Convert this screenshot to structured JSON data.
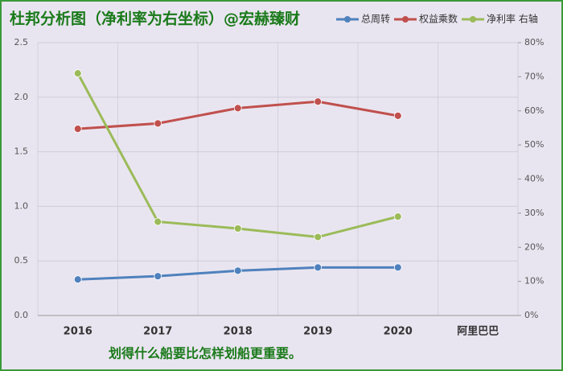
{
  "chart_data": {
    "type": "line",
    "title": "杜邦分析图（净利率为右坐标）@宏赫臻财",
    "annotation": "划得什么船要比怎样划船更重要。",
    "categories": [
      "2016",
      "2017",
      "2018",
      "2019",
      "2020",
      "阿里巴巴"
    ],
    "series": [
      {
        "name": "总周转",
        "color": "#4f81bd",
        "values": [
          0.33,
          0.36,
          0.41,
          0.44,
          0.44,
          null
        ]
      },
      {
        "name": "权益乘数",
        "color": "#c0504d",
        "values": [
          1.71,
          1.76,
          1.9,
          1.96,
          1.83,
          null
        ]
      },
      {
        "name": "净利率 右轴",
        "color": "#9bbb59",
        "axis": "y2",
        "values": [
          71,
          27.5,
          25.5,
          23,
          29,
          null
        ]
      }
    ],
    "ylim": [
      0,
      2.5
    ],
    "yticks": [
      {
        "value": 0,
        "label": "0.0"
      },
      0.5,
      {
        "value": 1,
        "label": "1.0"
      },
      1.5,
      {
        "value": 2,
        "label": "2.0"
      },
      2.5
    ],
    "y2lim": [
      0,
      80
    ],
    "y2ticks": [
      {
        "value": 0,
        "label": "0%"
      },
      {
        "value": 10,
        "label": "10%"
      },
      {
        "value": 20,
        "label": "20%"
      },
      {
        "value": 30,
        "label": "30%"
      },
      {
        "value": 40,
        "label": "40%"
      },
      {
        "value": 50,
        "label": "50%"
      },
      {
        "value": 60,
        "label": "60%"
      },
      {
        "value": 70,
        "label": "70%"
      },
      {
        "value": 80,
        "label": "80%"
      }
    ],
    "grid": true
  }
}
